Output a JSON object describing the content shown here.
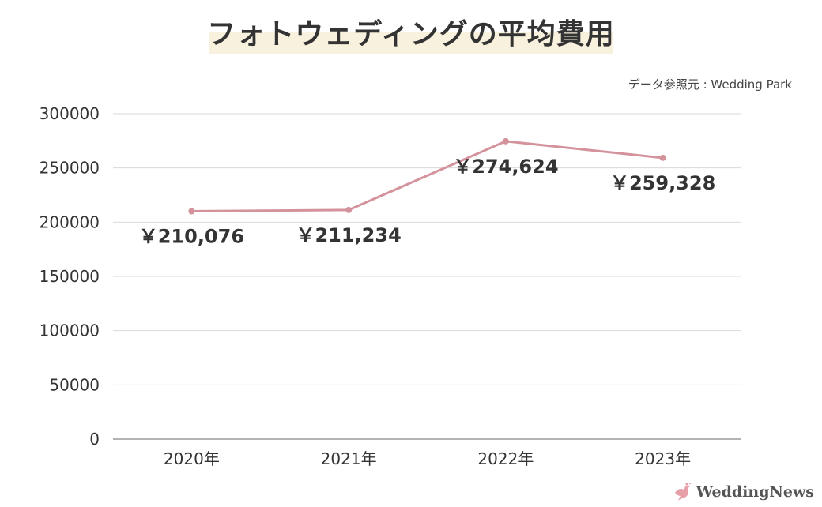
{
  "title": "フォトウェディングの平均費用",
  "source": "データ参照元 : Wedding Park",
  "brand": "WeddingNews",
  "colors": {
    "line": "#d4939c",
    "grid": "#d9d9d9",
    "highlight": "#f7f1dd",
    "brand_icon": "#e8a0a8"
  },
  "chart_data": {
    "type": "line",
    "categories": [
      "2020年",
      "2021年",
      "2022年",
      "2023年"
    ],
    "series": [
      {
        "values": [
          210076,
          211234,
          274624,
          259328
        ],
        "labels": [
          "￥210,076",
          "￥211,234",
          "￥274,624",
          "￥259,328"
        ]
      }
    ],
    "ylim": [
      0,
      300000
    ],
    "yticks": [
      0,
      50000,
      100000,
      150000,
      200000,
      250000,
      300000
    ],
    "ytick_labels": [
      "0",
      "50000",
      "100000",
      "150000",
      "200000",
      "250000",
      "300000"
    ],
    "grid": true,
    "legend": false
  }
}
